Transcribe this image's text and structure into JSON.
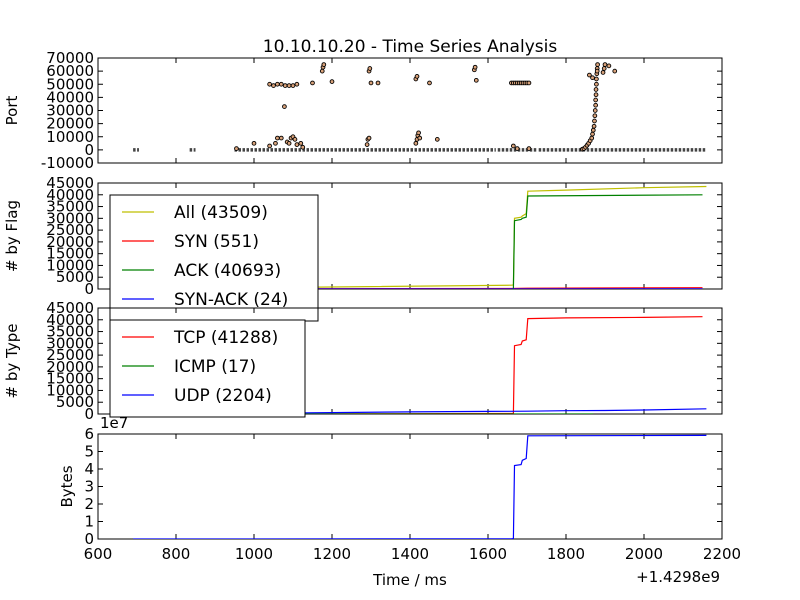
{
  "title": "10.10.10.20 - Time Series Analysis",
  "x_label": "Time / ms",
  "x_offset_label": "+1.4298e9",
  "x_ticks": [
    "600",
    "800",
    "1000",
    "1200",
    "1400",
    "1600",
    "1800",
    "2000",
    "2200"
  ],
  "chart_data": [
    {
      "id": "port",
      "type": "scatter",
      "ylabel": "Port",
      "xlim": [
        600,
        2200
      ],
      "ylim": [
        -10000,
        70000
      ],
      "yticks": [
        "-10000",
        "0",
        "10000",
        "20000",
        "30000",
        "40000",
        "50000",
        "60000",
        "70000"
      ],
      "baseline_segments": [
        [
          690,
          705
        ],
        [
          835,
          850
        ],
        [
          950,
          1620
        ],
        [
          1625,
          1725
        ],
        [
          1730,
          2160
        ]
      ],
      "points": [
        [
          955,
          1000
        ],
        [
          1000,
          5000
        ],
        [
          1040,
          3000
        ],
        [
          1055,
          5000
        ],
        [
          1060,
          9000
        ],
        [
          1070,
          9000
        ],
        [
          1085,
          6000
        ],
        [
          1090,
          5000
        ],
        [
          1095,
          9000
        ],
        [
          1100,
          10000
        ],
        [
          1105,
          8000
        ],
        [
          1110,
          4000
        ],
        [
          1120,
          5000
        ],
        [
          1125,
          2000
        ],
        [
          1290,
          4000
        ],
        [
          1292,
          8000
        ],
        [
          1295,
          9000
        ],
        [
          1415,
          5000
        ],
        [
          1418,
          8000
        ],
        [
          1420,
          11000
        ],
        [
          1422,
          13000
        ],
        [
          1425,
          9000
        ],
        [
          1470,
          8000
        ],
        [
          1665,
          3000
        ],
        [
          1675,
          1000
        ],
        [
          1705,
          1000
        ],
        [
          1040,
          50000
        ],
        [
          1050,
          49000
        ],
        [
          1060,
          50000
        ],
        [
          1070,
          50000
        ],
        [
          1080,
          49000
        ],
        [
          1090,
          49000
        ],
        [
          1100,
          49000
        ],
        [
          1110,
          50000
        ],
        [
          1078,
          33000
        ],
        [
          1150,
          51000
        ],
        [
          1175,
          60000
        ],
        [
          1177,
          63000
        ],
        [
          1179,
          65000
        ],
        [
          1200,
          52000
        ],
        [
          1295,
          60000
        ],
        [
          1297,
          62000
        ],
        [
          1300,
          51000
        ],
        [
          1318,
          51000
        ],
        [
          1415,
          54000
        ],
        [
          1418,
          56000
        ],
        [
          1450,
          51000
        ],
        [
          1565,
          61000
        ],
        [
          1567,
          63000
        ],
        [
          1570,
          53000
        ],
        [
          1660,
          51000
        ],
        [
          1665,
          51000
        ],
        [
          1670,
          51000
        ],
        [
          1675,
          51000
        ],
        [
          1680,
          51000
        ],
        [
          1685,
          51000
        ],
        [
          1690,
          51000
        ],
        [
          1695,
          51000
        ],
        [
          1700,
          51000
        ],
        [
          1705,
          51000
        ],
        [
          1842,
          500
        ],
        [
          1846,
          1000
        ],
        [
          1850,
          2000
        ],
        [
          1854,
          3500
        ],
        [
          1858,
          5000
        ],
        [
          1862,
          7000
        ],
        [
          1866,
          9000
        ],
        [
          1868,
          12000
        ],
        [
          1870,
          15000
        ],
        [
          1872,
          18000
        ],
        [
          1873,
          22000
        ],
        [
          1874,
          26000
        ],
        [
          1875,
          30000
        ],
        [
          1876,
          34000
        ],
        [
          1876,
          38000
        ],
        [
          1877,
          42000
        ],
        [
          1877,
          46000
        ],
        [
          1878,
          50000
        ],
        [
          1878,
          54000
        ],
        [
          1879,
          58000
        ],
        [
          1880,
          62000
        ],
        [
          1881,
          65000
        ],
        [
          1868,
          55000
        ],
        [
          1860,
          57000
        ],
        [
          1895,
          59000
        ],
        [
          1898,
          62000
        ],
        [
          1910,
          64000
        ],
        [
          1925,
          60000
        ],
        [
          1900,
          65000
        ],
        [
          1880,
          60000
        ]
      ]
    },
    {
      "id": "flags",
      "type": "line",
      "ylabel": "# by Flag",
      "xlim": [
        600,
        2200
      ],
      "ylim": [
        0,
        45000
      ],
      "yticks": [
        "0",
        "5000",
        "10000",
        "15000",
        "20000",
        "25000",
        "30000",
        "35000",
        "40000",
        "45000"
      ],
      "legend": "top-left",
      "series": [
        {
          "name": "All (43509)",
          "color": "#bfbf00",
          "points": [
            [
              690,
              0
            ],
            [
              1660,
              1600
            ],
            [
              1665,
              1700
            ],
            [
              1668,
              30000
            ],
            [
              1685,
              30500
            ],
            [
              1688,
              31000
            ],
            [
              1698,
              32000
            ],
            [
              1702,
              41500
            ],
            [
              1800,
              42000
            ],
            [
              2000,
              43000
            ],
            [
              2160,
              43509
            ]
          ]
        },
        {
          "name": "SYN (551)",
          "color": "#ff0000",
          "points": [
            [
              690,
              0
            ],
            [
              1000,
              100
            ],
            [
              1660,
              200
            ],
            [
              1700,
              350
            ],
            [
              2000,
              500
            ],
            [
              2150,
              551
            ]
          ]
        },
        {
          "name": "ACK (40693)",
          "color": "#008000",
          "points": [
            [
              1660,
              0
            ],
            [
              1665,
              100
            ],
            [
              1668,
              29000
            ],
            [
              1685,
              29500
            ],
            [
              1688,
              30000
            ],
            [
              1698,
              30500
            ],
            [
              1702,
              39500
            ],
            [
              2150,
              40000
            ]
          ]
        },
        {
          "name": "SYN-ACK (24)",
          "color": "#0000ff",
          "points": [
            [
              690,
              0
            ],
            [
              2150,
              24
            ]
          ]
        }
      ]
    },
    {
      "id": "types",
      "type": "line",
      "ylabel": "# by Type",
      "xlim": [
        600,
        2200
      ],
      "ylim": [
        0,
        45000
      ],
      "yticks": [
        "0",
        "5000",
        "10000",
        "15000",
        "20000",
        "25000",
        "30000",
        "35000",
        "40000",
        "45000"
      ],
      "legend": "top-left",
      "series": [
        {
          "name": "TCP (41288)",
          "color": "#ff0000",
          "points": [
            [
              690,
              0
            ],
            [
              1660,
              200
            ],
            [
              1665,
              300
            ],
            [
              1668,
              29000
            ],
            [
              1685,
              29500
            ],
            [
              1688,
              31000
            ],
            [
              1698,
              31500
            ],
            [
              1702,
              40500
            ],
            [
              1800,
              40800
            ],
            [
              2000,
              41000
            ],
            [
              2150,
              41288
            ]
          ]
        },
        {
          "name": "ICMP (17)",
          "color": "#008000",
          "points": [
            [
              690,
              0
            ],
            [
              1870,
              17
            ]
          ]
        },
        {
          "name": "UDP (2204)",
          "color": "#0000ff",
          "points": [
            [
              690,
              0
            ],
            [
              1000,
              300
            ],
            [
              1200,
              600
            ],
            [
              1400,
              900
            ],
            [
              1600,
              1100
            ],
            [
              1700,
              1200
            ],
            [
              1800,
              1400
            ],
            [
              1900,
              1500
            ],
            [
              2000,
              1700
            ],
            [
              2160,
              2204
            ]
          ]
        }
      ]
    },
    {
      "id": "bytes",
      "type": "line",
      "ylabel": "Bytes",
      "y_multiplier": "1e7",
      "xlim": [
        600,
        2200
      ],
      "ylim": [
        0,
        60000000
      ],
      "yticks": [
        "0",
        "1",
        "2",
        "3",
        "4",
        "5",
        "6"
      ],
      "series": [
        {
          "color": "#0000ff",
          "points": [
            [
              690,
              0
            ],
            [
              1660,
              100000
            ],
            [
              1665,
              200000
            ],
            [
              1668,
              42000000
            ],
            [
              1685,
              42500000
            ],
            [
              1688,
              45000000
            ],
            [
              1698,
              46000000
            ],
            [
              1702,
              59000000
            ],
            [
              2160,
              59200000
            ]
          ]
        }
      ]
    }
  ]
}
